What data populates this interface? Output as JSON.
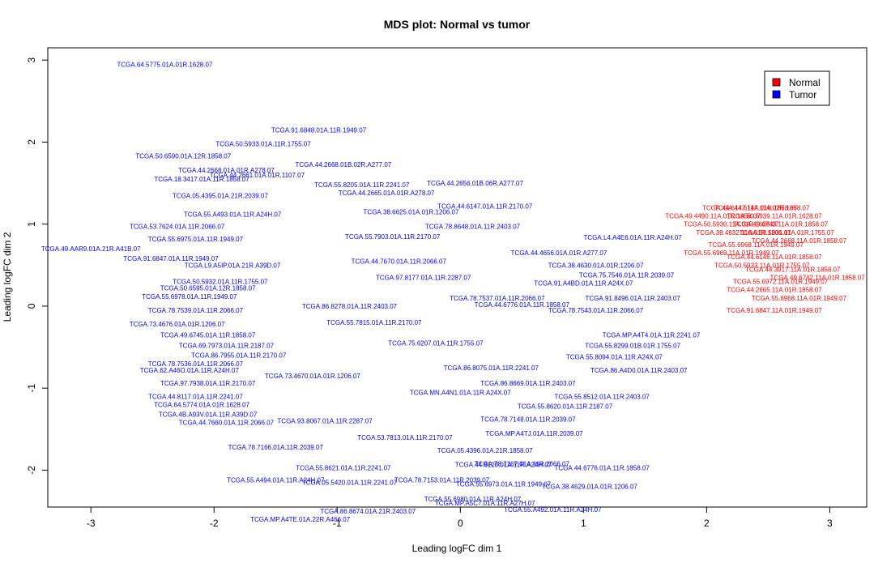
{
  "chart_data": {
    "type": "scatter",
    "title": "MDS plot: Normal vs tumor",
    "xlabel": "Leading logFC dim 1",
    "ylabel": "Leading logFC dim 2",
    "xlim": [
      -3.35,
      3.3
    ],
    "ylim": [
      -2.45,
      3.15
    ],
    "xticks": [
      "-3",
      "-2",
      "-1",
      "0",
      "1",
      "2",
      "3"
    ],
    "yticks": [
      "-2",
      "-1",
      "0",
      "1",
      "2",
      "3"
    ],
    "grid": false,
    "legend_position": "top-right",
    "colors": {
      "Normal": "#ff0000",
      "Tumor": "#0000ff"
    },
    "series": [
      {
        "name": "Normal",
        "points": [
          {
            "x": 2.35,
            "y": 1.2,
            "label": "TCGA.44.6147.11A.01R.1858.07"
          },
          {
            "x": 2.45,
            "y": 1.2,
            "label": "TCGA.44.6147.11A.02R.1858.07"
          },
          {
            "x": 2.05,
            "y": 1.1,
            "label": "TCGA.49.4490.11A.01R.1858.07"
          },
          {
            "x": 2.55,
            "y": 1.1,
            "label": "TCGA.50.5939.11A.01R.1628.07"
          },
          {
            "x": 2.2,
            "y": 1.0,
            "label": "TCGA.50.5930.11A.01R.1628.07"
          },
          {
            "x": 2.6,
            "y": 1.0,
            "label": "TCGA.49.6743.11A.01R.1858.07"
          },
          {
            "x": 2.3,
            "y": 0.9,
            "label": "TCGA.38.4632.11A.01R.1206.07"
          },
          {
            "x": 2.65,
            "y": 0.9,
            "label": "TCGA.50.5931.11A.01R.1755.07"
          },
          {
            "x": 2.75,
            "y": 0.8,
            "label": "TCGA.44.2668.11A.01R.1858.07"
          },
          {
            "x": 2.4,
            "y": 0.75,
            "label": "TCGA.55.6968.11A.01R.1949.07"
          },
          {
            "x": 2.2,
            "y": 0.65,
            "label": "TCGA.55.6969.11A.01R.1949.07"
          },
          {
            "x": 2.55,
            "y": 0.6,
            "label": "TCGA.44.6146.11A.01R.1858.07"
          },
          {
            "x": 2.45,
            "y": 0.5,
            "label": "TCGA.50.5933.11A.01R.1755.07"
          },
          {
            "x": 2.7,
            "y": 0.45,
            "label": "TCGA.44.3917.11A.01R.1858.07"
          },
          {
            "x": 2.9,
            "y": 0.35,
            "label": "TCGA.49.6742.11A.01R.1858.07"
          },
          {
            "x": 2.6,
            "y": 0.3,
            "label": "TCGA.55.6972.11A.01R.1949.07"
          },
          {
            "x": 2.55,
            "y": 0.2,
            "label": "TCGA.44.2665.11A.01R.1858.07"
          },
          {
            "x": 2.75,
            "y": 0.1,
            "label": "TCGA.55.6968.11A.01R.1949.07"
          },
          {
            "x": 2.55,
            "y": -0.05,
            "label": "TCGA.91.6847.11A.01R.1949.07"
          }
        ]
      },
      {
        "name": "Tumor",
        "points": [
          {
            "x": -2.4,
            "y": 2.95,
            "label": "TCGA.64.5775.01A.01R.1628.07"
          },
          {
            "x": -1.15,
            "y": 2.15,
            "label": "TCGA.91.6848.01A.11R.1949.07"
          },
          {
            "x": -1.6,
            "y": 1.98,
            "label": "TCGA.50.5933.01A.11R.1755.07"
          },
          {
            "x": -2.25,
            "y": 1.83,
            "label": "TCGA.50.6590.01A.12R.1858.07"
          },
          {
            "x": -0.95,
            "y": 1.73,
            "label": "TCGA.44.2668.01B.02R.A277.07"
          },
          {
            "x": -1.9,
            "y": 1.66,
            "label": "TCGA.44.2668.01A.01R.A278.07"
          },
          {
            "x": -1.65,
            "y": 1.6,
            "label": "TCGA.44.2661.01A.01R.1107.07"
          },
          {
            "x": -2.1,
            "y": 1.55,
            "label": "TCGA.18.3417.01A.11R.1858.07"
          },
          {
            "x": -0.8,
            "y": 1.48,
            "label": "TCGA.55.8205.01A.11R.2241.07"
          },
          {
            "x": 0.12,
            "y": 1.5,
            "label": "TCGA.44.2656.01B.06R.A277.07"
          },
          {
            "x": -0.6,
            "y": 1.38,
            "label": "TCGA.44.2665.01A.01R.A278.07"
          },
          {
            "x": -1.95,
            "y": 1.35,
            "label": "TCGA.05.4395.01A.21R.2039.07"
          },
          {
            "x": -0.4,
            "y": 1.15,
            "label": "TCGA.38.6625.01A.01R.1206.07"
          },
          {
            "x": 0.2,
            "y": 1.22,
            "label": "TCGA.44.6147.01A.11R.2170.07"
          },
          {
            "x": -1.85,
            "y": 1.12,
            "label": "TCGA.55.A493.01A.11R.A24H.07"
          },
          {
            "x": -2.3,
            "y": 0.97,
            "label": "TCGA.53.7624.01A.11R.2066.07"
          },
          {
            "x": 0.1,
            "y": 0.97,
            "label": "TCGA.78.8648.01A.11R.2403.07"
          },
          {
            "x": -2.15,
            "y": 0.82,
            "label": "TCGA.55.6975.01A.11R.1949.07"
          },
          {
            "x": -3.0,
            "y": 0.7,
            "label": "TCGA.49.AAR9.01A.21R.A41B.07"
          },
          {
            "x": 1.4,
            "y": 0.84,
            "label": "TCGA.L4.A4E6.01A.11R.A24H.07"
          },
          {
            "x": -2.35,
            "y": 0.58,
            "label": "TCGA.91.6847.01A.11R.1949.07"
          },
          {
            "x": -1.85,
            "y": 0.5,
            "label": "TCGA.L9.A5IP.01A.21R.A39D.07"
          },
          {
            "x": 0.8,
            "y": 0.65,
            "label": "TCGA.44.4656.01A.01R.A277.07"
          },
          {
            "x": 1.1,
            "y": 0.5,
            "label": "TCGA.38.4630.01A.01R.1206.07"
          },
          {
            "x": 1.35,
            "y": 0.38,
            "label": "TCGA.75.7546.01A.11R.2039.07"
          },
          {
            "x": -1.95,
            "y": 0.3,
            "label": "TCGA.50.5932.01A.11R.1755.07"
          },
          {
            "x": -2.05,
            "y": 0.22,
            "label": "TCGA.50.6595.01A.12R.1858.07"
          },
          {
            "x": 1.0,
            "y": 0.28,
            "label": "TCGA.91.A4BD.01A.11R.A24X.07"
          },
          {
            "x": -2.2,
            "y": 0.12,
            "label": "TCGA.55.6978.01A.11R.1949.07"
          },
          {
            "x": 1.4,
            "y": 0.1,
            "label": "TCGA.91.8496.01A.11R.2403.07"
          },
          {
            "x": -2.15,
            "y": -0.05,
            "label": "TCGA.78.7539.01A.11R.2066.07"
          },
          {
            "x": -0.9,
            "y": 0.0,
            "label": "TCGA.86.8278.01A.11R.2403.07"
          },
          {
            "x": 0.5,
            "y": 0.02,
            "label": "TCGA.44.6776.01A.11R.1858.07"
          },
          {
            "x": 1.1,
            "y": -0.05,
            "label": "TCGA.78.7543.01A.11R.2066.07"
          },
          {
            "x": -2.3,
            "y": -0.22,
            "label": "TCGA.73.4676.01A.01R.1206.07"
          },
          {
            "x": 1.55,
            "y": -0.35,
            "label": "TCGA.MP.A4T4.01A.11R.2241.07"
          },
          {
            "x": -2.05,
            "y": -0.35,
            "label": "TCGA.49.6745.01A.11R.1858.07"
          },
          {
            "x": 1.4,
            "y": -0.48,
            "label": "TCGA.55.8299.01B.01R.1755.07"
          },
          {
            "x": -1.9,
            "y": -0.48,
            "label": "TCGA.69.7973.01A.11R.2187.07"
          },
          {
            "x": -1.8,
            "y": -0.6,
            "label": "TCGA.86.7955.01A.11R.2170.07"
          },
          {
            "x": 1.25,
            "y": -0.62,
            "label": "TCGA.55.8094.01A.11R.A24X.07"
          },
          {
            "x": -2.15,
            "y": -0.7,
            "label": "TCGA.78.7536.01A.11R.2066.07"
          },
          {
            "x": -2.2,
            "y": -0.78,
            "label": "TCGA.62.A46O.01A.11R.A24H.07"
          },
          {
            "x": 1.45,
            "y": -0.78,
            "label": "TCGA.86.A4D0.01A.11R.2403.07"
          },
          {
            "x": -2.05,
            "y": -0.94,
            "label": "TCGA.97.7938.01A.11R.2170.07"
          },
          {
            "x": 0.55,
            "y": -0.94,
            "label": "TCGA.86.8669.01A.11R.2403.07"
          },
          {
            "x": -2.15,
            "y": -1.1,
            "label": "TCGA.44.8117.01A.11R.2241.07"
          },
          {
            "x": 1.15,
            "y": -1.1,
            "label": "TCGA.55.8512.01A.11R.2403.07"
          },
          {
            "x": -2.1,
            "y": -1.2,
            "label": "TCGA.64.5774.01A.01R.1628.07"
          },
          {
            "x": 0.85,
            "y": -1.22,
            "label": "TCGA.55.8620.01A.11R.2187.07"
          },
          {
            "x": -2.05,
            "y": -1.32,
            "label": "TCGA.4B.A93V.01A.11R.A39D.07"
          },
          {
            "x": -1.9,
            "y": -1.42,
            "label": "TCGA.44.7660.01A.11R.2066.07"
          },
          {
            "x": 0.55,
            "y": -1.38,
            "label": "TCGA.78.7148.01A.11R.2039.07"
          },
          {
            "x": 0.6,
            "y": -1.55,
            "label": "TCGA.MP.A4TJ.01A.11R.2039.07"
          },
          {
            "x": -0.45,
            "y": -1.6,
            "label": "TCGA.53.7813.01A.11R.2170.07"
          },
          {
            "x": -1.5,
            "y": -1.72,
            "label": "TCGA.78.7166.01A.11R.2039.07"
          },
          {
            "x": 0.2,
            "y": -1.76,
            "label": "TCGA.05.4396.01A.21R.1858.07"
          },
          {
            "x": 0.35,
            "y": -1.93,
            "label": "TCGA.44.8120.01A.11R.A24H.07"
          },
          {
            "x": 1.15,
            "y": -1.97,
            "label": "TCGA.44.6776.01A.11R.1858.07"
          },
          {
            "x": 0.5,
            "y": -1.92,
            "label": "TCGA.78.7167.01A.11R.2066.07"
          },
          {
            "x": -0.95,
            "y": -1.97,
            "label": "TCGA.55.8621.01A.11R.2241.07"
          },
          {
            "x": -1.5,
            "y": -2.12,
            "label": "TCGA.55.A494.01A.11R.A24H.07"
          },
          {
            "x": -0.9,
            "y": -2.15,
            "label": "TCGA.05.5420.01A.11R.2241.07"
          },
          {
            "x": -0.15,
            "y": -2.12,
            "label": "TCGA.78.7153.01A.11R.2039.07"
          },
          {
            "x": 0.35,
            "y": -2.17,
            "label": "TCGA.55.6973.01A.11R.1949.07"
          },
          {
            "x": 1.05,
            "y": -2.2,
            "label": "TCGA.38.4629.01A.01R.1206.07"
          },
          {
            "x": 0.1,
            "y": -2.35,
            "label": "TCGA.55.6980.01A.11R.A24H.07"
          },
          {
            "x": 0.2,
            "y": -2.4,
            "label": "TCGA.MP.A5C7.01A.11R.A27H.07"
          },
          {
            "x": -0.75,
            "y": -2.5,
            "label": "TCGA.86.8674.01A.21R.2403.07"
          },
          {
            "x": 0.75,
            "y": -2.48,
            "label": "TCGA.55.A492.01A.11R.A24H.07"
          },
          {
            "x": -1.3,
            "y": -2.6,
            "label": "TCGA.MP.A4TE.01A.22R.A466.07"
          },
          {
            "x": -0.5,
            "y": 0.55,
            "label": "TCGA.44.7670.01A.11R.2066.07"
          },
          {
            "x": -0.3,
            "y": 0.35,
            "label": "TCGA.97.8177.01A.11R.2287.07"
          },
          {
            "x": -0.7,
            "y": -0.2,
            "label": "TCGA.55.7815.01A.11R.2170.07"
          },
          {
            "x": -0.2,
            "y": -0.45,
            "label": "TCGA.75.6207.01A.11R.1755.07"
          },
          {
            "x": 0.3,
            "y": 0.1,
            "label": "TCGA.78.7537.01A.11R.2066.07"
          },
          {
            "x": -1.2,
            "y": -0.85,
            "label": "TCGA.73.4670.01A.01R.1206.07"
          },
          {
            "x": 0.0,
            "y": -1.05,
            "label": "TCGA.MN.A4N1.01A.11R.A24X.07"
          },
          {
            "x": -0.55,
            "y": 0.85,
            "label": "TCGA.55.7903.01A.11R.2170.07"
          },
          {
            "x": -1.1,
            "y": -1.4,
            "label": "TCGA.93.8067.01A.11R.2287.07"
          },
          {
            "x": 0.25,
            "y": -0.75,
            "label": "TCGA.86.8075.01A.11R.2241.07"
          }
        ]
      }
    ]
  }
}
